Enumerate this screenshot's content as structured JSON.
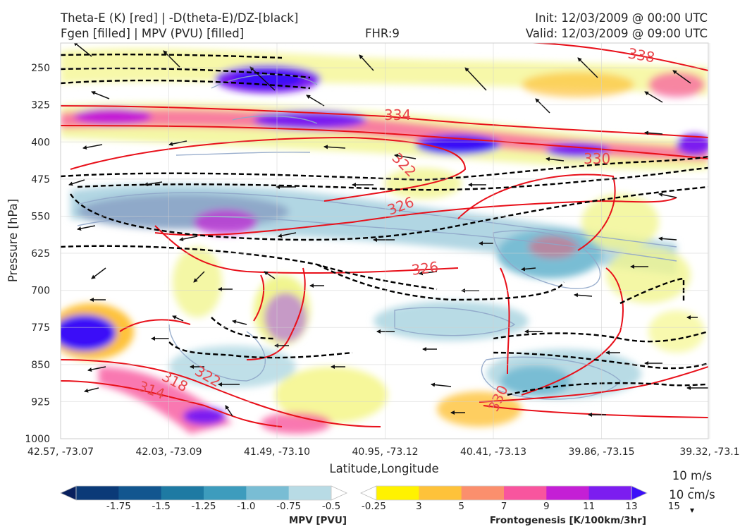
{
  "header": {
    "line1_left": "Theta-E (K) [red] | -D(theta-E)/DZ-[black]",
    "line2_left": "Fgen [filled] | MPV (PVU) [filled]",
    "fhr": "FHR:9",
    "init": "Init: 12/03/2009 @ 00:00 UTC",
    "valid": "Valid: 12/03/2009 @ 09:00 UTC"
  },
  "chart_data": {
    "type": "heatmap",
    "subtype": "vertical cross-section",
    "xlabel": "Latitude,Longitude",
    "ylabel": "Pressure [hPa]",
    "x_ticks": [
      "42.57, -73.07",
      "42.03, -73.09",
      "41.49, -73.10",
      "40.95, -73.12",
      "40.41, -73.13",
      "39.86, -73.15",
      "39.32, -73.1"
    ],
    "y_ticks": [
      250,
      325,
      400,
      475,
      550,
      625,
      700,
      775,
      850,
      925,
      1000
    ],
    "ylim": [
      1000,
      200
    ],
    "y_reversed": true,
    "grid": true,
    "theta_e_contour_labels": [
      "338",
      "334",
      "330",
      "322",
      "326",
      "326",
      "318",
      "322",
      "314",
      "330"
    ],
    "mpv_colorbar": {
      "label": "MPV [PVU]",
      "ticks": [
        "-1.75",
        "-1.5",
        "-1.25",
        "-1.0",
        "-0.75",
        "-0.5",
        "-0.25"
      ],
      "colors": [
        "#08205e",
        "#0b3a78",
        "#12568f",
        "#1e7aa3",
        "#3d9cbd",
        "#79bdd4",
        "#b8dbe5",
        "#ffffff"
      ]
    },
    "fgen_colorbar": {
      "label": "Frontogenesis [K/100km/3hr]",
      "ticks": [
        "3",
        "5",
        "7",
        "9",
        "11",
        "13",
        "15"
      ],
      "colors": [
        "#ffffff",
        "#fff200",
        "#fec23a",
        "#fb8f6d",
        "#f8559e",
        "#c41fd5",
        "#7c1df0",
        "#3b0ff8"
      ]
    },
    "wind_key": {
      "line1": "10 m/s",
      "line2": "10 cm/s"
    }
  }
}
